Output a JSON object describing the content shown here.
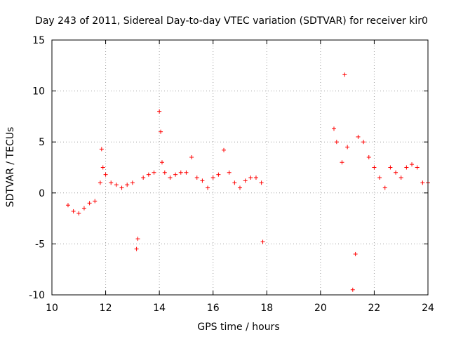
{
  "chart_data": {
    "type": "scatter",
    "title": "Day 243 of 2011, Sidereal Day-to-day VTEC variation (SDTVAR) for receiver kir0",
    "xlabel": "GPS time / hours",
    "ylabel": "SDTVAR / TECUs",
    "xlim": [
      10,
      24
    ],
    "ylim": [
      -10,
      15
    ],
    "x_ticks": [
      10,
      12,
      14,
      16,
      18,
      20,
      22,
      24
    ],
    "y_ticks": [
      -10,
      -5,
      0,
      5,
      10,
      15
    ],
    "x_tick_labels": [
      "10",
      "12",
      "14",
      "16",
      "18",
      "20",
      "22",
      "24"
    ],
    "y_tick_labels": [
      "-10",
      "-5",
      "0",
      "5",
      "10",
      "15"
    ],
    "grid": true,
    "marker": "+",
    "color": "#ff0000",
    "series": [
      {
        "name": "",
        "x": [
          10.6,
          10.8,
          11.0,
          11.2,
          11.4,
          11.6,
          11.8,
          11.85,
          11.9,
          12.0,
          12.2,
          12.4,
          12.6,
          12.8,
          13.0,
          13.15,
          13.2,
          13.4,
          13.6,
          13.8,
          14.0,
          14.05,
          14.1,
          14.2,
          14.4,
          14.6,
          14.8,
          15.0,
          15.2,
          15.4,
          15.6,
          15.8,
          16.0,
          16.2,
          16.4,
          16.6,
          16.8,
          17.0,
          17.2,
          17.4,
          17.6,
          17.8,
          17.85,
          20.5,
          20.6,
          20.8,
          20.9,
          21.0,
          21.2,
          21.3,
          21.4,
          21.6,
          21.8,
          22.0,
          22.2,
          22.4,
          22.6,
          22.8,
          23.0,
          23.2,
          23.4,
          23.6,
          23.8,
          24.0
        ],
        "y": [
          -1.2,
          -1.8,
          -2.0,
          -1.5,
          -1.0,
          -0.8,
          1.0,
          4.3,
          2.5,
          1.8,
          1.0,
          0.8,
          0.5,
          0.8,
          1.0,
          -5.5,
          -4.5,
          1.5,
          1.8,
          2.0,
          8.0,
          6.0,
          3.0,
          2.0,
          1.5,
          1.8,
          2.0,
          2.0,
          3.5,
          1.5,
          1.2,
          0.5,
          1.5,
          1.8,
          4.2,
          2.0,
          1.0,
          0.5,
          1.2,
          1.5,
          1.5,
          1.0,
          -4.8,
          6.3,
          5.0,
          3.0,
          11.6,
          4.5,
          -9.5,
          -6.0,
          5.5,
          5.0,
          3.5,
          2.5,
          1.5,
          0.5,
          2.5,
          2.0,
          1.5,
          2.5,
          2.8,
          2.5,
          1.0,
          1.0
        ]
      }
    ]
  }
}
